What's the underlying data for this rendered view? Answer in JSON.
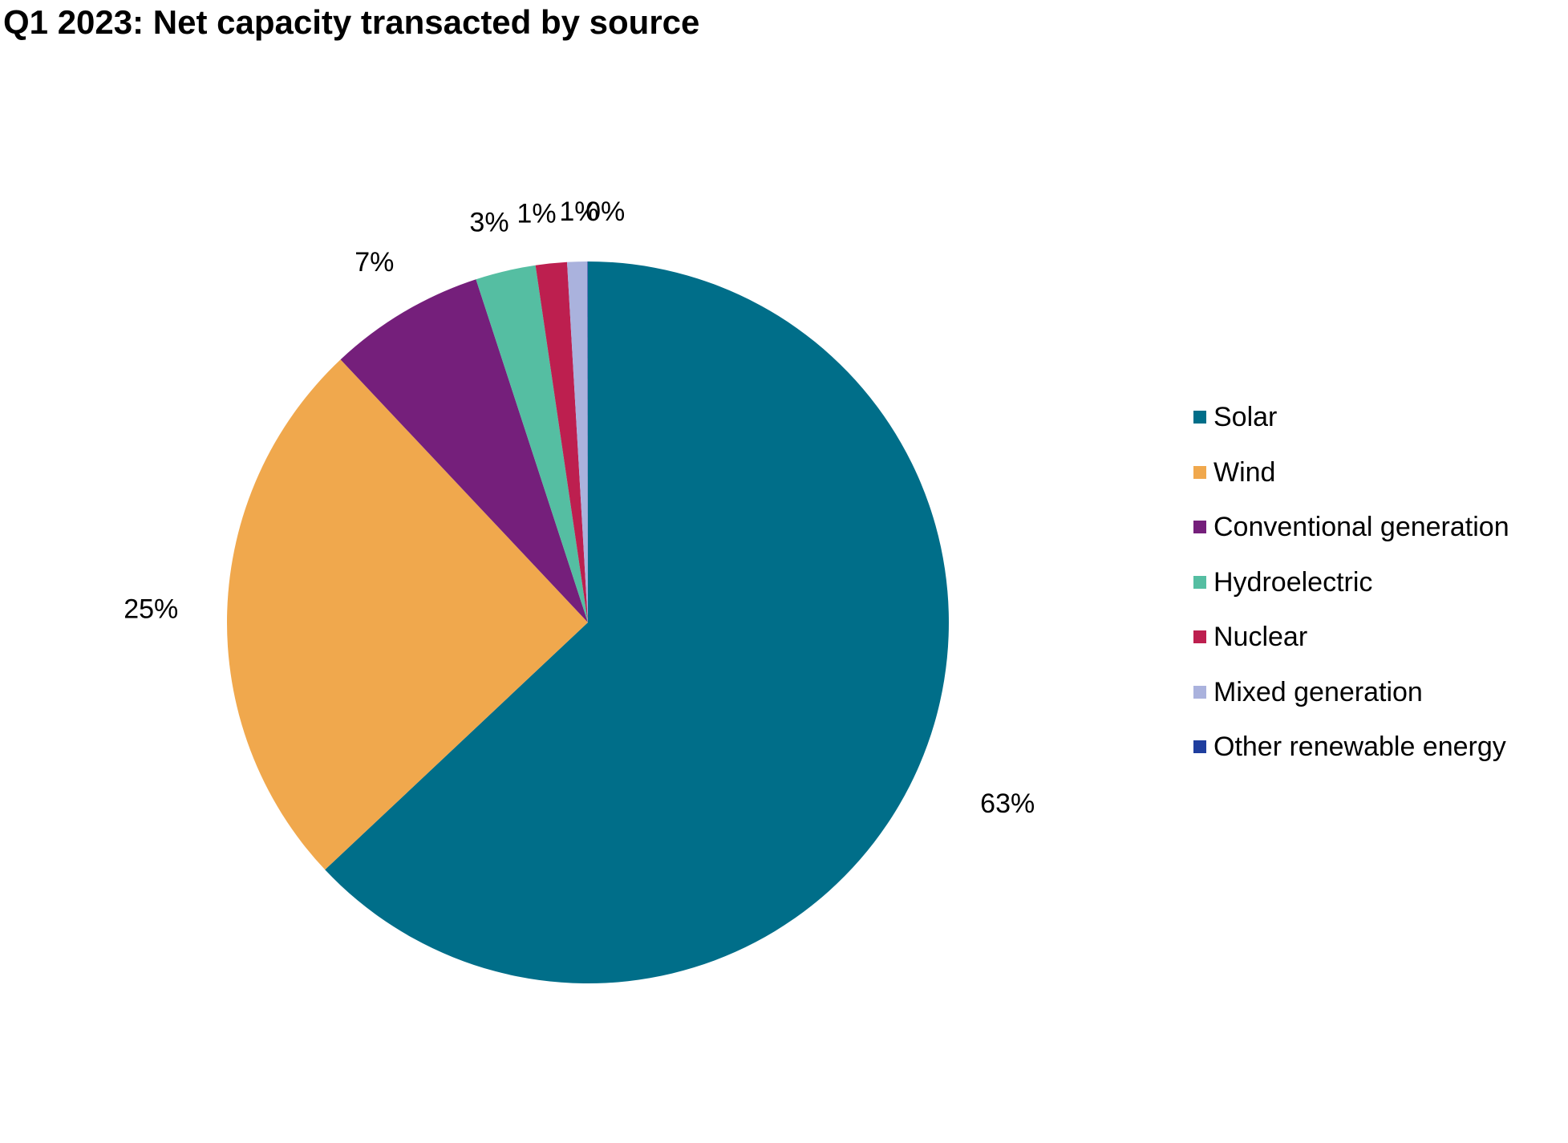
{
  "chart_data": {
    "type": "pie",
    "title": "Q1 2023: Net capacity transacted by source",
    "start_angle_deg": 0,
    "direction": "clockwise",
    "legend_position": "right",
    "slices": [
      {
        "label": "Solar",
        "value": 63,
        "display": "63%",
        "color": "#006e89"
      },
      {
        "label": "Wind",
        "value": 25,
        "display": "25%",
        "color": "#f0a84d"
      },
      {
        "label": "Conventional generation",
        "value": 7,
        "display": "7%",
        "color": "#751f7b"
      },
      {
        "label": "Hydroelectric",
        "value": 2.7,
        "display": "3%",
        "color": "#55bea2"
      },
      {
        "label": "Nuclear",
        "value": 1.4,
        "display": "1%",
        "color": "#bd1f4f"
      },
      {
        "label": "Mixed generation",
        "value": 0.9,
        "display": "1%",
        "color": "#aab2dd"
      },
      {
        "label": "Other renewable energy",
        "value": 0.02,
        "display": "0%",
        "color": "#1f3e9e"
      }
    ]
  }
}
